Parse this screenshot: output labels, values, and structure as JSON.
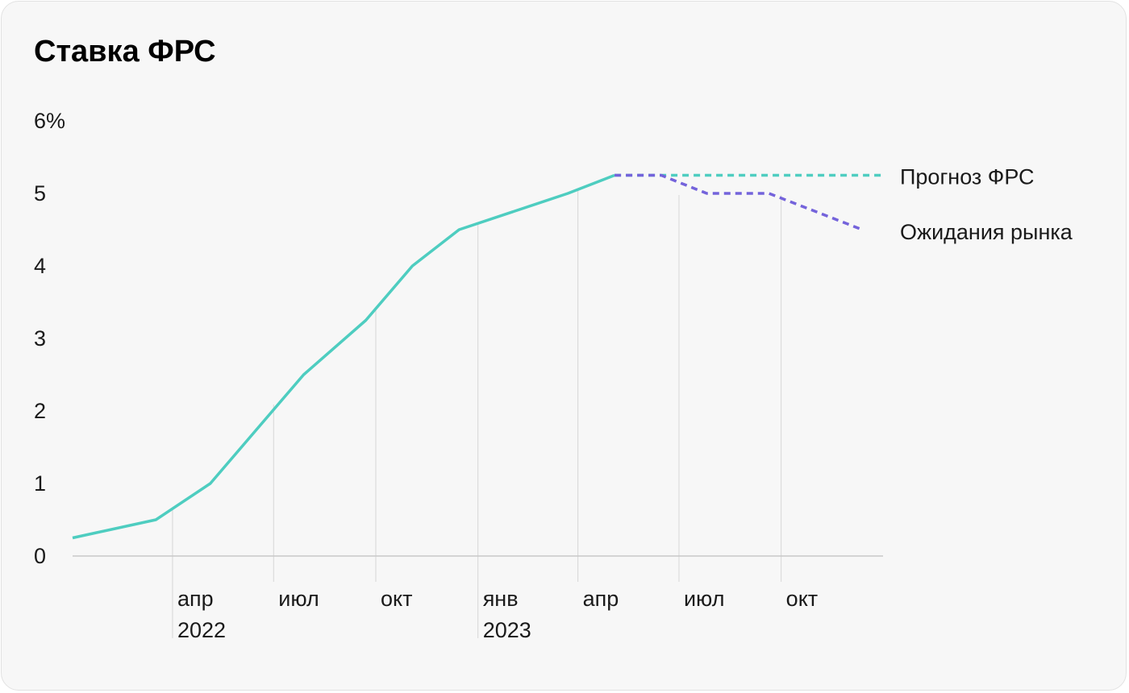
{
  "title": "Ставка ФРС",
  "colors": {
    "fed": "#4ecdc0",
    "market": "#7463db",
    "grid": "#d6d6d6",
    "axis": "#c8c8c8"
  },
  "chart_data": {
    "type": "line",
    "title": "Ставка ФРС",
    "xlabel": "",
    "ylabel": "",
    "ylim": [
      0,
      6
    ],
    "x_range": [
      "2022-01-01",
      "2023-12-31"
    ],
    "y_ticks": [
      {
        "value": 0,
        "label": "0"
      },
      {
        "value": 1,
        "label": "1"
      },
      {
        "value": 2,
        "label": "2"
      },
      {
        "value": 3,
        "label": "3"
      },
      {
        "value": 4,
        "label": "4"
      },
      {
        "value": 5,
        "label": "5"
      },
      {
        "value": 6,
        "label": "6%"
      }
    ],
    "x_ticks": [
      {
        "date": "2022-04-01",
        "label": "апр",
        "year": "2022"
      },
      {
        "date": "2022-07-01",
        "label": "июл",
        "year": ""
      },
      {
        "date": "2022-10-01",
        "label": "окт",
        "year": ""
      },
      {
        "date": "2023-01-01",
        "label": "янв",
        "year": "2023"
      },
      {
        "date": "2023-04-01",
        "label": "апр",
        "year": ""
      },
      {
        "date": "2023-07-01",
        "label": "июл",
        "year": ""
      },
      {
        "date": "2023-10-01",
        "label": "окт",
        "year": ""
      }
    ],
    "grid": true,
    "series": [
      {
        "name": "",
        "style": "solid",
        "color": "#4ecdc0",
        "points": [
          {
            "x": "2022-01-01",
            "y": 0.25
          },
          {
            "x": "2022-03-17",
            "y": 0.5
          },
          {
            "x": "2022-05-05",
            "y": 1.0
          },
          {
            "x": "2022-06-16",
            "y": 1.75
          },
          {
            "x": "2022-07-28",
            "y": 2.5
          },
          {
            "x": "2022-09-22",
            "y": 3.25
          },
          {
            "x": "2022-11-03",
            "y": 4.0
          },
          {
            "x": "2022-12-15",
            "y": 4.5
          },
          {
            "x": "2023-02-02",
            "y": 4.75
          },
          {
            "x": "2023-03-23",
            "y": 5.0
          },
          {
            "x": "2023-05-04",
            "y": 5.25
          }
        ]
      },
      {
        "name": "Прогноз ФРС",
        "style": "dashed",
        "color": "#4ecdc0",
        "points": [
          {
            "x": "2023-05-04",
            "y": 5.25
          },
          {
            "x": "2023-12-31",
            "y": 5.25
          }
        ]
      },
      {
        "name": "Ожидания рынка",
        "style": "dashed",
        "color": "#7463db",
        "points": [
          {
            "x": "2023-05-04",
            "y": 5.25
          },
          {
            "x": "2023-06-15",
            "y": 5.25
          },
          {
            "x": "2023-07-26",
            "y": 5.0
          },
          {
            "x": "2023-09-20",
            "y": 5.0
          },
          {
            "x": "2023-12-13",
            "y": 4.5
          }
        ]
      }
    ],
    "legend_placement": "right, inline at line ends"
  }
}
